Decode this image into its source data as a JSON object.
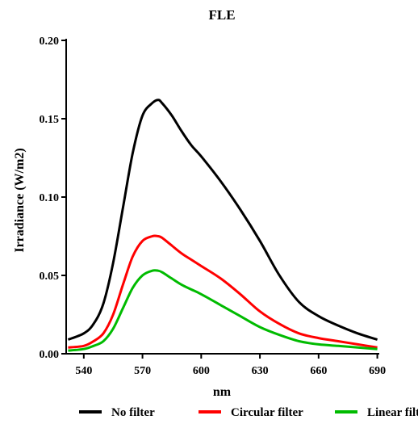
{
  "chart_data": {
    "type": "line",
    "title": "FLE",
    "xlabel": "nm",
    "ylabel": "Irradiance (W/m2)",
    "xlim": [
      531,
      691
    ],
    "ylim": [
      0,
      0.2
    ],
    "x_ticks": [
      540,
      570,
      600,
      630,
      660,
      690
    ],
    "y_ticks": [
      0.0,
      0.05,
      0.1,
      0.15,
      0.2
    ],
    "x_tick_labels": [
      "540",
      "570",
      "600",
      "630",
      "660",
      "690"
    ],
    "y_tick_labels": [
      "0.00",
      "0.05",
      "0.10",
      "0.15",
      "0.20"
    ],
    "grid": false,
    "legend_position": "bottom",
    "x": [
      532,
      540,
      545,
      550,
      555,
      560,
      565,
      570,
      575,
      578,
      580,
      585,
      590,
      595,
      600,
      610,
      620,
      630,
      640,
      650,
      660,
      670,
      680,
      690
    ],
    "series": [
      {
        "name": "No filter",
        "color": "#000000",
        "values": [
          0.009,
          0.013,
          0.019,
          0.032,
          0.058,
          0.093,
          0.128,
          0.152,
          0.16,
          0.162,
          0.16,
          0.152,
          0.142,
          0.133,
          0.126,
          0.11,
          0.092,
          0.072,
          0.05,
          0.033,
          0.024,
          0.018,
          0.013,
          0.009
        ]
      },
      {
        "name": "Circular filter",
        "color": "#ff0000",
        "values": [
          0.004,
          0.005,
          0.008,
          0.013,
          0.025,
          0.044,
          0.062,
          0.072,
          0.075,
          0.075,
          0.074,
          0.069,
          0.064,
          0.06,
          0.056,
          0.048,
          0.038,
          0.027,
          0.019,
          0.013,
          0.01,
          0.008,
          0.006,
          0.004
        ]
      },
      {
        "name": "Linear filter",
        "color": "#00bb00",
        "values": [
          0.002,
          0.003,
          0.005,
          0.008,
          0.016,
          0.029,
          0.042,
          0.05,
          0.053,
          0.053,
          0.052,
          0.048,
          0.044,
          0.041,
          0.038,
          0.031,
          0.024,
          0.017,
          0.012,
          0.008,
          0.006,
          0.005,
          0.004,
          0.003
        ]
      }
    ]
  }
}
